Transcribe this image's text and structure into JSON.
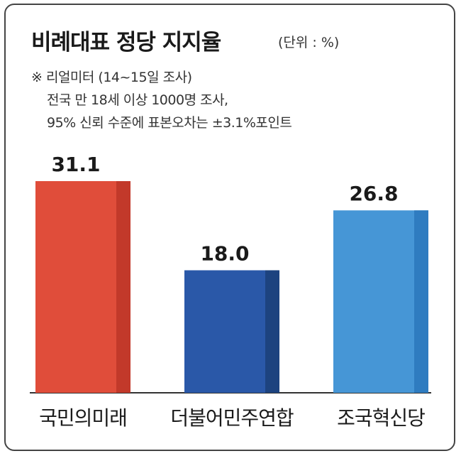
{
  "title": "비례대표 정당 지지율",
  "unit": "(단위 : %)",
  "notes": [
    "※ 리얼미터 (14~15일 조사)",
    "전국 만 18세 이상 1000명 조사,",
    "95% 신뢰 수준에 표본오차는 ±3.1%포인트"
  ],
  "chart_data": {
    "type": "bar",
    "title": "비례대표 정당 지지율",
    "unit": "(단위 : %)",
    "categories": [
      "국민의미래",
      "더불어민주연합",
      "조국혁신당"
    ],
    "values": [
      31.1,
      18.0,
      26.8
    ],
    "value_labels": [
      "31.1",
      "18.0",
      "26.8"
    ],
    "colors": [
      "#e04d3a",
      "#2a58a8",
      "#4696d6"
    ],
    "shade_colors": [
      "#c2392a",
      "#1d437f",
      "#2f7cc0"
    ],
    "ylim": [
      0,
      31.1
    ],
    "grid": false,
    "legend": "none"
  }
}
